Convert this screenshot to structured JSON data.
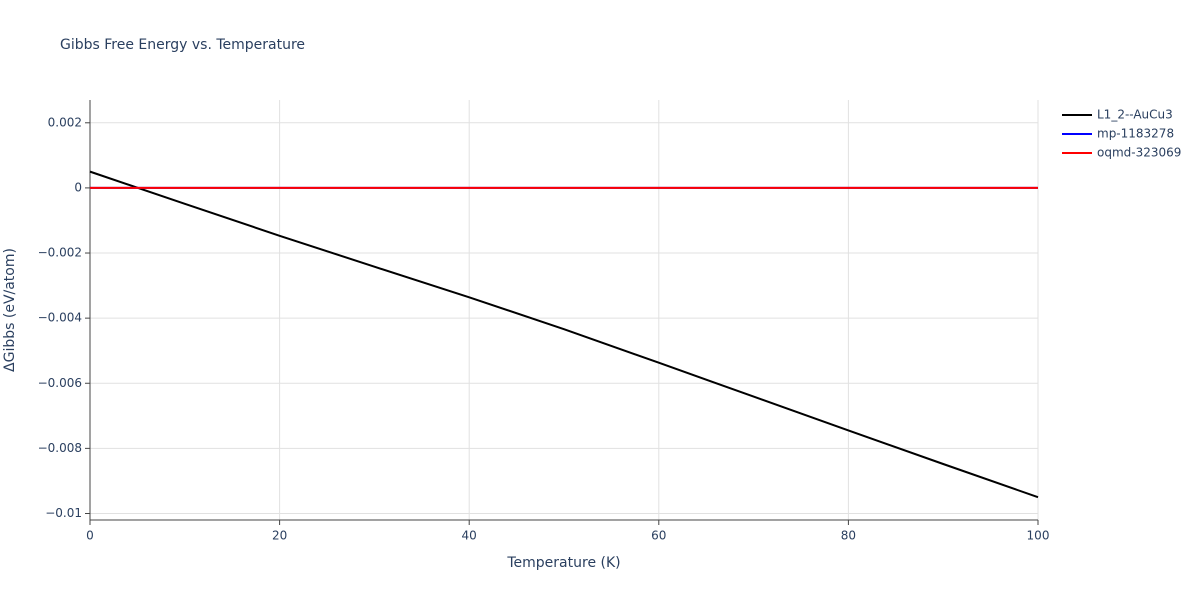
{
  "chart_data": {
    "type": "line",
    "title": "Gibbs Free Energy vs. Temperature",
    "x_label": "Temperature (K)",
    "y_label": "ΔGibbs (eV/atom)",
    "x": [
      0,
      10,
      20,
      30,
      40,
      50,
      60,
      70,
      80,
      90,
      100
    ],
    "series": [
      {
        "name": "L1_2--AuCu3",
        "color": "#000000",
        "values": [
          0.0005,
          -0.00049,
          -0.00147,
          -0.00242,
          -0.00336,
          -0.00434,
          -0.00537,
          -0.00641,
          -0.00745,
          -0.00848,
          -0.0095
        ]
      },
      {
        "name": "mp-1183278",
        "color": "#0000ff",
        "values": [
          0,
          0,
          0,
          0,
          0,
          0,
          0,
          0,
          0,
          0,
          0
        ]
      },
      {
        "name": "oqmd-323069",
        "color": "#ff0000",
        "values": [
          0,
          0,
          0,
          0,
          0,
          0,
          0,
          0,
          0,
          0,
          0
        ]
      }
    ],
    "xlim": [
      0,
      100
    ],
    "xticks": [
      0,
      20,
      40,
      60,
      80,
      100
    ],
    "ylim": [
      -0.0102,
      0.0027
    ],
    "yticks": [
      {
        "value": -0.01,
        "label": "−0.01"
      },
      {
        "value": -0.008,
        "label": "−0.008"
      },
      {
        "value": -0.006,
        "label": "−0.006"
      },
      {
        "value": -0.004,
        "label": "−0.004"
      },
      {
        "value": -0.002,
        "label": "−0.002"
      },
      0,
      0.002
    ],
    "grid": true,
    "legend": "right"
  }
}
